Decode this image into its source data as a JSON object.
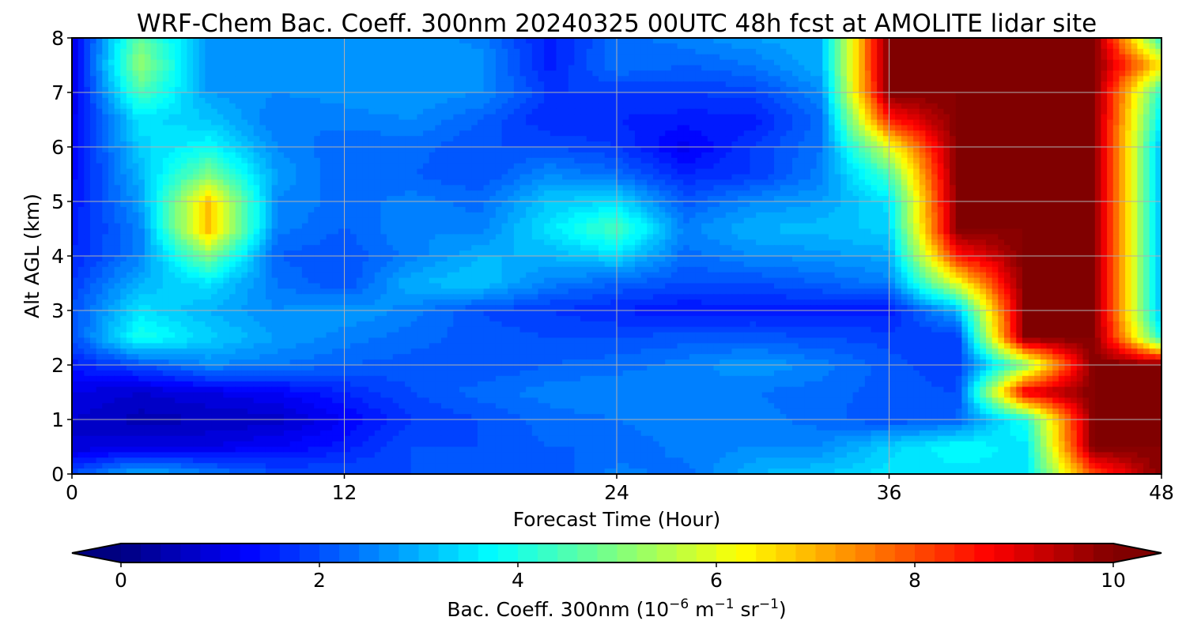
{
  "chart_data": {
    "type": "heatmap",
    "title": "WRF-Chem Bac. Coeff. 300nm  20240325 00UTC 48h fcst at AMOLITE lidar site",
    "xlabel": "Forecast Time (Hour)",
    "ylabel": "Alt AGL (km)",
    "xlim": [
      0,
      48
    ],
    "ylim": [
      0,
      8
    ],
    "x_ticks": [
      "0",
      "12",
      "24",
      "36",
      "48"
    ],
    "y_ticks": [
      "0",
      "1",
      "2",
      "3",
      "4",
      "5",
      "6",
      "7",
      "8"
    ],
    "grid": true,
    "colormap": "jet",
    "colorbar": {
      "label_main": "Bac. Coeff. 300nm  (10",
      "label_exp1": "−6",
      "label_mid": " m",
      "label_exp2": "−1",
      "label_mid2": " sr",
      "label_exp3": "−1",
      "label_end": ")",
      "range": [
        0,
        10
      ],
      "extend": "both",
      "ticks": [
        "0",
        "2",
        "4",
        "6",
        "8",
        "10"
      ],
      "levels": 50
    },
    "x_hours": [
      0,
      3,
      6,
      9,
      12,
      15,
      18,
      21,
      24,
      27,
      30,
      33,
      36,
      39,
      42,
      45,
      48
    ],
    "altitudes_km": [
      0,
      0.5,
      1,
      1.5,
      2,
      2.5,
      3,
      3.5,
      4,
      4.5,
      5,
      5.5,
      6,
      6.5,
      7,
      7.5,
      8
    ],
    "values": [
      [
        2.0,
        3.0,
        2.5,
        2.0,
        2.0,
        2.0,
        2.0,
        2.0,
        2.5,
        2.3,
        3.0,
        3.2,
        3.5,
        3.5,
        3.5,
        8.0,
        10.0
      ],
      [
        0.8,
        1.0,
        1.0,
        1.2,
        1.5,
        2.0,
        2.0,
        2.2,
        2.2,
        2.5,
        2.6,
        2.6,
        3.3,
        3.8,
        3.5,
        10.0,
        10.0
      ],
      [
        0.8,
        0.5,
        0.6,
        0.7,
        1.2,
        1.8,
        2.0,
        2.3,
        2.4,
        2.6,
        2.5,
        2.3,
        2.0,
        2.2,
        4.0,
        10.0,
        10.0
      ],
      [
        1.0,
        0.8,
        1.0,
        1.2,
        1.6,
        2.0,
        2.3,
        2.5,
        2.6,
        2.5,
        2.4,
        2.3,
        2.1,
        2.0,
        9.0,
        10.0,
        10.0
      ],
      [
        1.5,
        2.0,
        2.6,
        2.4,
        2.2,
        2.1,
        2.0,
        2.2,
        2.3,
        2.5,
        2.8,
        2.5,
        2.1,
        1.8,
        5.0,
        10.0,
        10.0
      ],
      [
        2.0,
        4.0,
        3.3,
        2.8,
        2.5,
        2.3,
        2.1,
        2.0,
        2.0,
        2.1,
        2.1,
        2.0,
        1.9,
        1.8,
        10.0,
        10.0,
        4.0
      ],
      [
        2.0,
        3.5,
        3.0,
        2.6,
        2.8,
        2.5,
        2.0,
        1.8,
        1.6,
        1.4,
        1.5,
        1.5,
        1.5,
        3.0,
        10.0,
        10.0,
        3.0
      ],
      [
        1.8,
        3.0,
        3.5,
        2.4,
        2.0,
        3.0,
        3.2,
        2.5,
        2.2,
        2.0,
        2.0,
        2.2,
        2.5,
        6.0,
        10.0,
        10.0,
        3.0
      ],
      [
        1.6,
        2.5,
        5.0,
        2.2,
        2.0,
        2.5,
        3.0,
        3.0,
        3.4,
        2.3,
        2.6,
        2.7,
        2.9,
        8.5,
        10.0,
        10.0,
        3.0
      ],
      [
        1.5,
        2.5,
        7.0,
        2.5,
        2.2,
        2.6,
        2.5,
        3.5,
        4.5,
        2.5,
        3.0,
        3.1,
        3.3,
        10.0,
        10.0,
        10.0,
        3.0
      ],
      [
        1.4,
        2.8,
        6.8,
        2.6,
        2.3,
        2.5,
        2.3,
        3.2,
        3.4,
        2.1,
        2.6,
        2.8,
        3.5,
        10.0,
        10.0,
        10.0,
        3.0
      ],
      [
        1.3,
        3.0,
        5.0,
        2.8,
        2.2,
        2.2,
        2.0,
        2.6,
        2.3,
        1.6,
        1.8,
        2.5,
        4.5,
        10.0,
        10.0,
        10.0,
        3.0
      ],
      [
        1.2,
        3.3,
        3.8,
        2.6,
        2.2,
        2.3,
        2.0,
        2.0,
        1.8,
        1.1,
        1.8,
        2.4,
        6.0,
        10.0,
        10.0,
        10.0,
        3.0
      ],
      [
        1.1,
        3.5,
        3.2,
        2.4,
        2.5,
        2.6,
        2.2,
        1.6,
        1.6,
        1.5,
        1.5,
        2.3,
        8.5,
        10.0,
        10.0,
        10.0,
        3.5
      ],
      [
        1.0,
        4.5,
        2.8,
        2.6,
        2.7,
        2.8,
        2.6,
        1.8,
        1.8,
        1.8,
        1.9,
        2.6,
        10.0,
        10.0,
        10.0,
        10.0,
        4.0
      ],
      [
        1.0,
        5.2,
        2.7,
        2.8,
        2.8,
        2.8,
        2.7,
        1.5,
        2.4,
        2.2,
        2.4,
        3.0,
        10.0,
        10.0,
        10.0,
        10.0,
        6.5
      ],
      [
        1.0,
        4.8,
        2.6,
        2.7,
        2.7,
        2.8,
        2.5,
        1.5,
        2.3,
        2.5,
        2.8,
        3.0,
        10.0,
        10.0,
        10.0,
        10.0,
        4.0
      ]
    ]
  }
}
